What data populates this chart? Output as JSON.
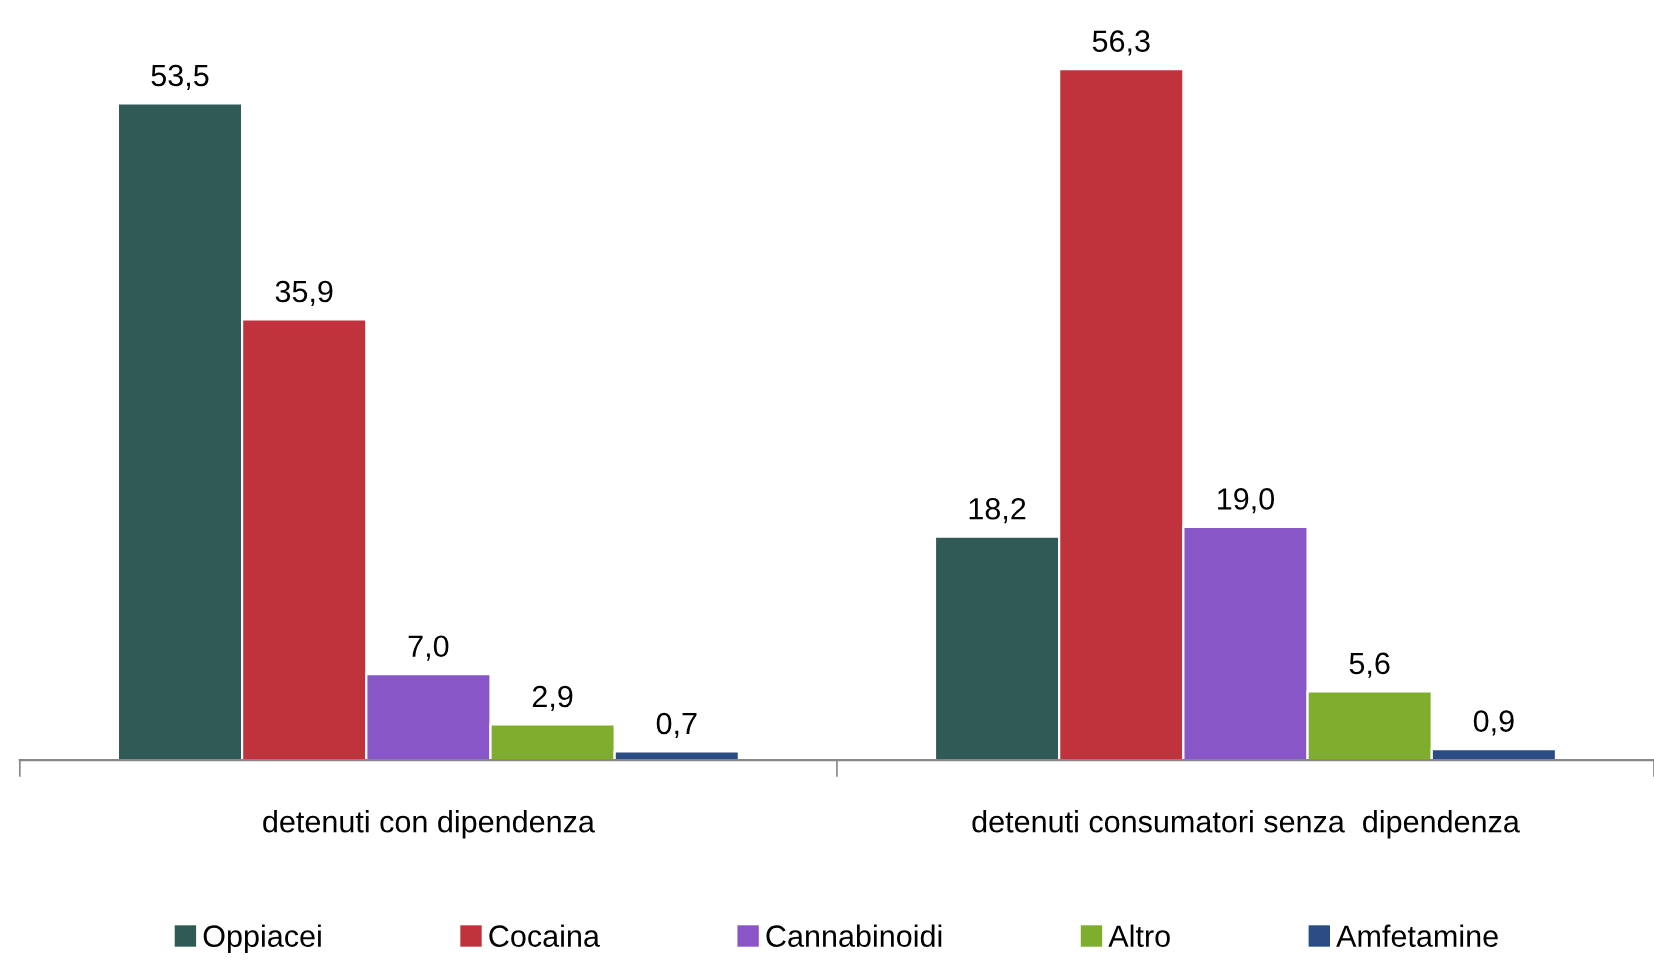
{
  "chart_data": {
    "type": "bar",
    "categories": [
      "detenuti con dipendenza",
      "detenuti consumatori senza  dipendenza"
    ],
    "series": [
      {
        "name": "Oppiacei",
        "color": "#2f5a55",
        "values": [
          53.5,
          18.2
        ],
        "value_labels": [
          "53,5",
          "18,2"
        ]
      },
      {
        "name": "Cocaina",
        "color": "#c0323c",
        "values": [
          35.9,
          56.3
        ],
        "value_labels": [
          "35,9",
          "56,3"
        ]
      },
      {
        "name": "Cannabinoidi",
        "color": "#8856c6",
        "values": [
          7.0,
          19.0
        ],
        "value_labels": [
          "7,0",
          "19,0"
        ]
      },
      {
        "name": "Altro",
        "color": "#7fae2e",
        "values": [
          2.9,
          5.6
        ],
        "value_labels": [
          "2,9",
          "5,6"
        ]
      },
      {
        "name": "Amfetamine",
        "color": "#2b4c85",
        "values": [
          0.7,
          0.9
        ],
        "value_labels": [
          "0,7",
          "0,9"
        ]
      }
    ],
    "tick_labels": "x",
    "grid": false,
    "legend": "bottom"
  }
}
